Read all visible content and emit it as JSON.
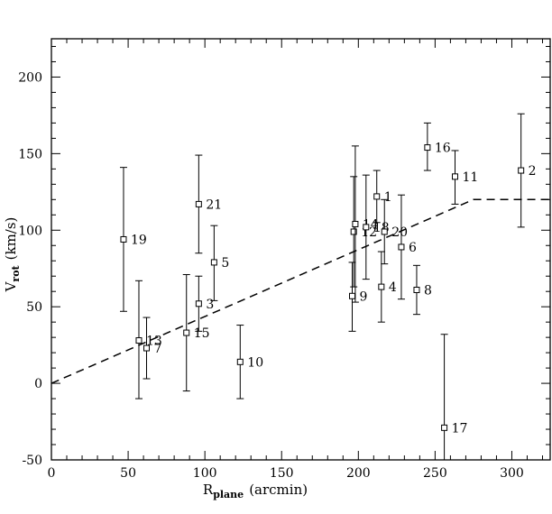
{
  "chart_data": {
    "type": "scatter",
    "title": "",
    "xlabel": {
      "main": "R",
      "sub": "plane",
      "unit": "(arcmin)"
    },
    "ylabel": {
      "main": "V",
      "sub": "rot",
      "unit": "(km/s)"
    },
    "xlim": [
      0,
      325
    ],
    "ylim": [
      -50,
      225
    ],
    "xticks": [
      "0",
      "50",
      "100",
      "150",
      "200",
      "250",
      "300"
    ],
    "yticks": [
      "-50",
      "0",
      "50",
      "100",
      "150",
      "200"
    ],
    "grid": false,
    "series": [
      {
        "points": [
          {
            "label": "1",
            "x": 212,
            "y": 122,
            "ylow": 105,
            "yhigh": 139
          },
          {
            "label": "2",
            "x": 306,
            "y": 139,
            "ylow": 102,
            "yhigh": 176
          },
          {
            "label": "3",
            "x": 96,
            "y": 52,
            "ylow": 34,
            "yhigh": 70
          },
          {
            "label": "4",
            "x": 215,
            "y": 63,
            "ylow": 40,
            "yhigh": 86
          },
          {
            "label": "5",
            "x": 106,
            "y": 79,
            "ylow": 54,
            "yhigh": 103
          },
          {
            "label": "6",
            "x": 228,
            "y": 89,
            "ylow": 55,
            "yhigh": 123
          },
          {
            "label": "7",
            "x": 62,
            "y": 23,
            "ylow": 3,
            "yhigh": 43
          },
          {
            "label": "8",
            "x": 238,
            "y": 61,
            "ylow": 45,
            "yhigh": 77
          },
          {
            "label": "9",
            "x": 196,
            "y": 57,
            "ylow": 34,
            "yhigh": 79
          },
          {
            "label": "10",
            "x": 123,
            "y": 14,
            "ylow": -10,
            "yhigh": 38
          },
          {
            "label": "11",
            "x": 263,
            "y": 135,
            "ylow": 117,
            "yhigh": 152
          },
          {
            "label": "12",
            "x": 197,
            "y": 99,
            "ylow": 63,
            "yhigh": 135
          },
          {
            "label": "13",
            "x": 57,
            "y": 28,
            "ylow": -10,
            "yhigh": 67
          },
          {
            "label": "14",
            "x": 198,
            "y": 104,
            "ylow": 53,
            "yhigh": 155
          },
          {
            "label": "15",
            "x": 88,
            "y": 33,
            "ylow": -5,
            "yhigh": 71
          },
          {
            "label": "16",
            "x": 245,
            "y": 154,
            "ylow": 139,
            "yhigh": 170
          },
          {
            "label": "17",
            "x": 256,
            "y": -29,
            "ylow": -90,
            "yhigh": 32
          },
          {
            "label": "18",
            "x": 205,
            "y": 102,
            "ylow": 68,
            "yhigh": 136
          },
          {
            "label": "19",
            "x": 47,
            "y": 94,
            "ylow": 47,
            "yhigh": 141
          },
          {
            "label": "20",
            "x": 217,
            "y": 99,
            "ylow": 78,
            "yhigh": 120
          },
          {
            "label": "21",
            "x": 96,
            "y": 117,
            "ylow": 85,
            "yhigh": 149
          }
        ]
      }
    ],
    "model_line": [
      {
        "x": 0,
        "y": 0
      },
      {
        "x": 275,
        "y": 120
      },
      {
        "x": 325,
        "y": 120
      }
    ]
  }
}
